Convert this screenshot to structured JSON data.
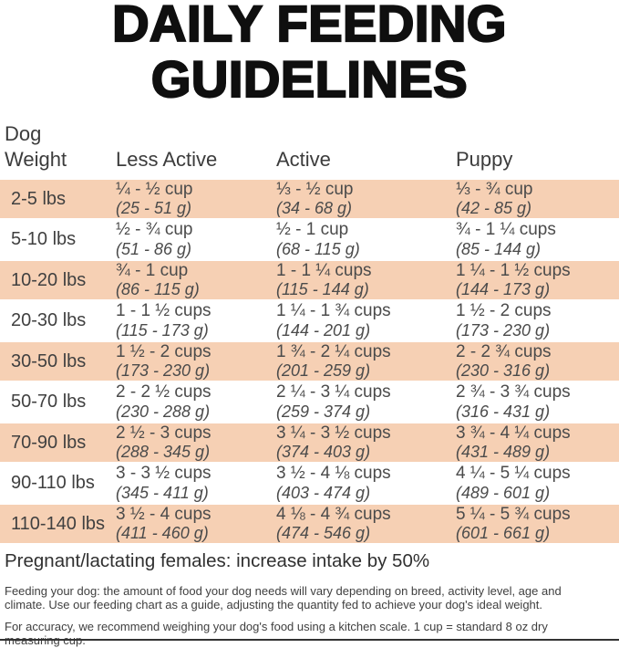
{
  "title": {
    "line1": "DAILY FEEDING",
    "line2": "GUIDELINES"
  },
  "colors": {
    "row_shade": "#f6d0b4",
    "title": "#0f0f0f",
    "body_text": "#4b4b4b",
    "bottom_rule": "#333333"
  },
  "table": {
    "header": {
      "weight_line1": "Dog",
      "weight_line2": "Weight",
      "less_active": "Less Active",
      "active": "Active",
      "puppy": "Puppy"
    },
    "rows": [
      {
        "weight": "2-5 lbs",
        "shaded": true,
        "less_active_cups": "¼ - ½ cup",
        "less_active_g": "(25 - 51 g)",
        "active_cups": "⅓ - ½ cup",
        "active_g": "(34 - 68 g)",
        "puppy_cups": "⅓ - ¾ cup",
        "puppy_g": "(42 - 85 g)"
      },
      {
        "weight": "5-10 lbs",
        "shaded": false,
        "less_active_cups": "½ - ¾ cup",
        "less_active_g": "(51 - 86 g)",
        "active_cups": "½ - 1 cup",
        "active_g": "(68 - 115 g)",
        "puppy_cups": "¾ - 1 ¼ cups",
        "puppy_g": "(85 - 144 g)"
      },
      {
        "weight": "10-20 lbs",
        "shaded": true,
        "less_active_cups": "¾ - 1 cup",
        "less_active_g": "(86 - 115 g)",
        "active_cups": "1 - 1 ¼ cups",
        "active_g": "(115 - 144 g)",
        "puppy_cups": "1 ¼ - 1 ½ cups",
        "puppy_g": "(144 - 173 g)"
      },
      {
        "weight": "20-30 lbs",
        "shaded": false,
        "less_active_cups": "1 - 1 ½ cups",
        "less_active_g": "(115 - 173 g)",
        "active_cups": "1 ¼ - 1 ¾ cups",
        "active_g": "(144 - 201 g)",
        "puppy_cups": "1 ½ - 2 cups",
        "puppy_g": "(173 - 230 g)"
      },
      {
        "weight": "30-50 lbs",
        "shaded": true,
        "less_active_cups": "1 ½ - 2 cups",
        "less_active_g": "(173 - 230 g)",
        "active_cups": "1 ¾ - 2 ¼ cups",
        "active_g": "(201 - 259 g)",
        "puppy_cups": "2 - 2 ¾ cups",
        "puppy_g": "(230 - 316 g)"
      },
      {
        "weight": "50-70 lbs",
        "shaded": false,
        "less_active_cups": "2 - 2 ½ cups",
        "less_active_g": "(230 - 288 g)",
        "active_cups": "2 ¼ - 3 ¼ cups",
        "active_g": "(259 - 374 g)",
        "puppy_cups": "2 ¾ - 3 ¾ cups",
        "puppy_g": "(316 - 431 g)"
      },
      {
        "weight": "70-90 lbs",
        "shaded": true,
        "less_active_cups": "2 ½ - 3 cups",
        "less_active_g": "(288 - 345 g)",
        "active_cups": "3 ¼ - 3 ½ cups",
        "active_g": "(374 - 403 g)",
        "puppy_cups": "3 ¾ - 4 ¼ cups",
        "puppy_g": "(431 - 489 g)"
      },
      {
        "weight": "90-110 lbs",
        "shaded": false,
        "less_active_cups": "3 - 3 ½ cups",
        "less_active_g": "(345 - 411 g)",
        "active_cups": "3 ½ - 4 ⅛ cups",
        "active_g": "(403 - 474 g)",
        "puppy_cups": "4 ¼ - 5 ¼ cups",
        "puppy_g": "(489 - 601 g)"
      },
      {
        "weight": "110-140 lbs",
        "shaded": true,
        "less_active_cups": "3 ½ - 4 cups",
        "less_active_g": "(411 - 460 g)",
        "active_cups": "4 ⅛ - 4 ¾ cups",
        "active_g": "(474 - 546 g)",
        "puppy_cups": "5 ¼ - 5 ¾ cups",
        "puppy_g": "(601 - 661 g)"
      }
    ]
  },
  "notes": {
    "pregnant": "Pregnant/lactating females: increase intake by 50%",
    "para1": "Feeding your dog: the amount of food your dog needs will vary depending on breed, activity level, age and climate. Use our feeding chart as a guide, adjusting the quantity fed to achieve your dog's ideal weight.",
    "para2": "For accuracy, we recommend weighing your dog's food using a kitchen scale. 1 cup = standard 8 oz dry measuring cup."
  }
}
